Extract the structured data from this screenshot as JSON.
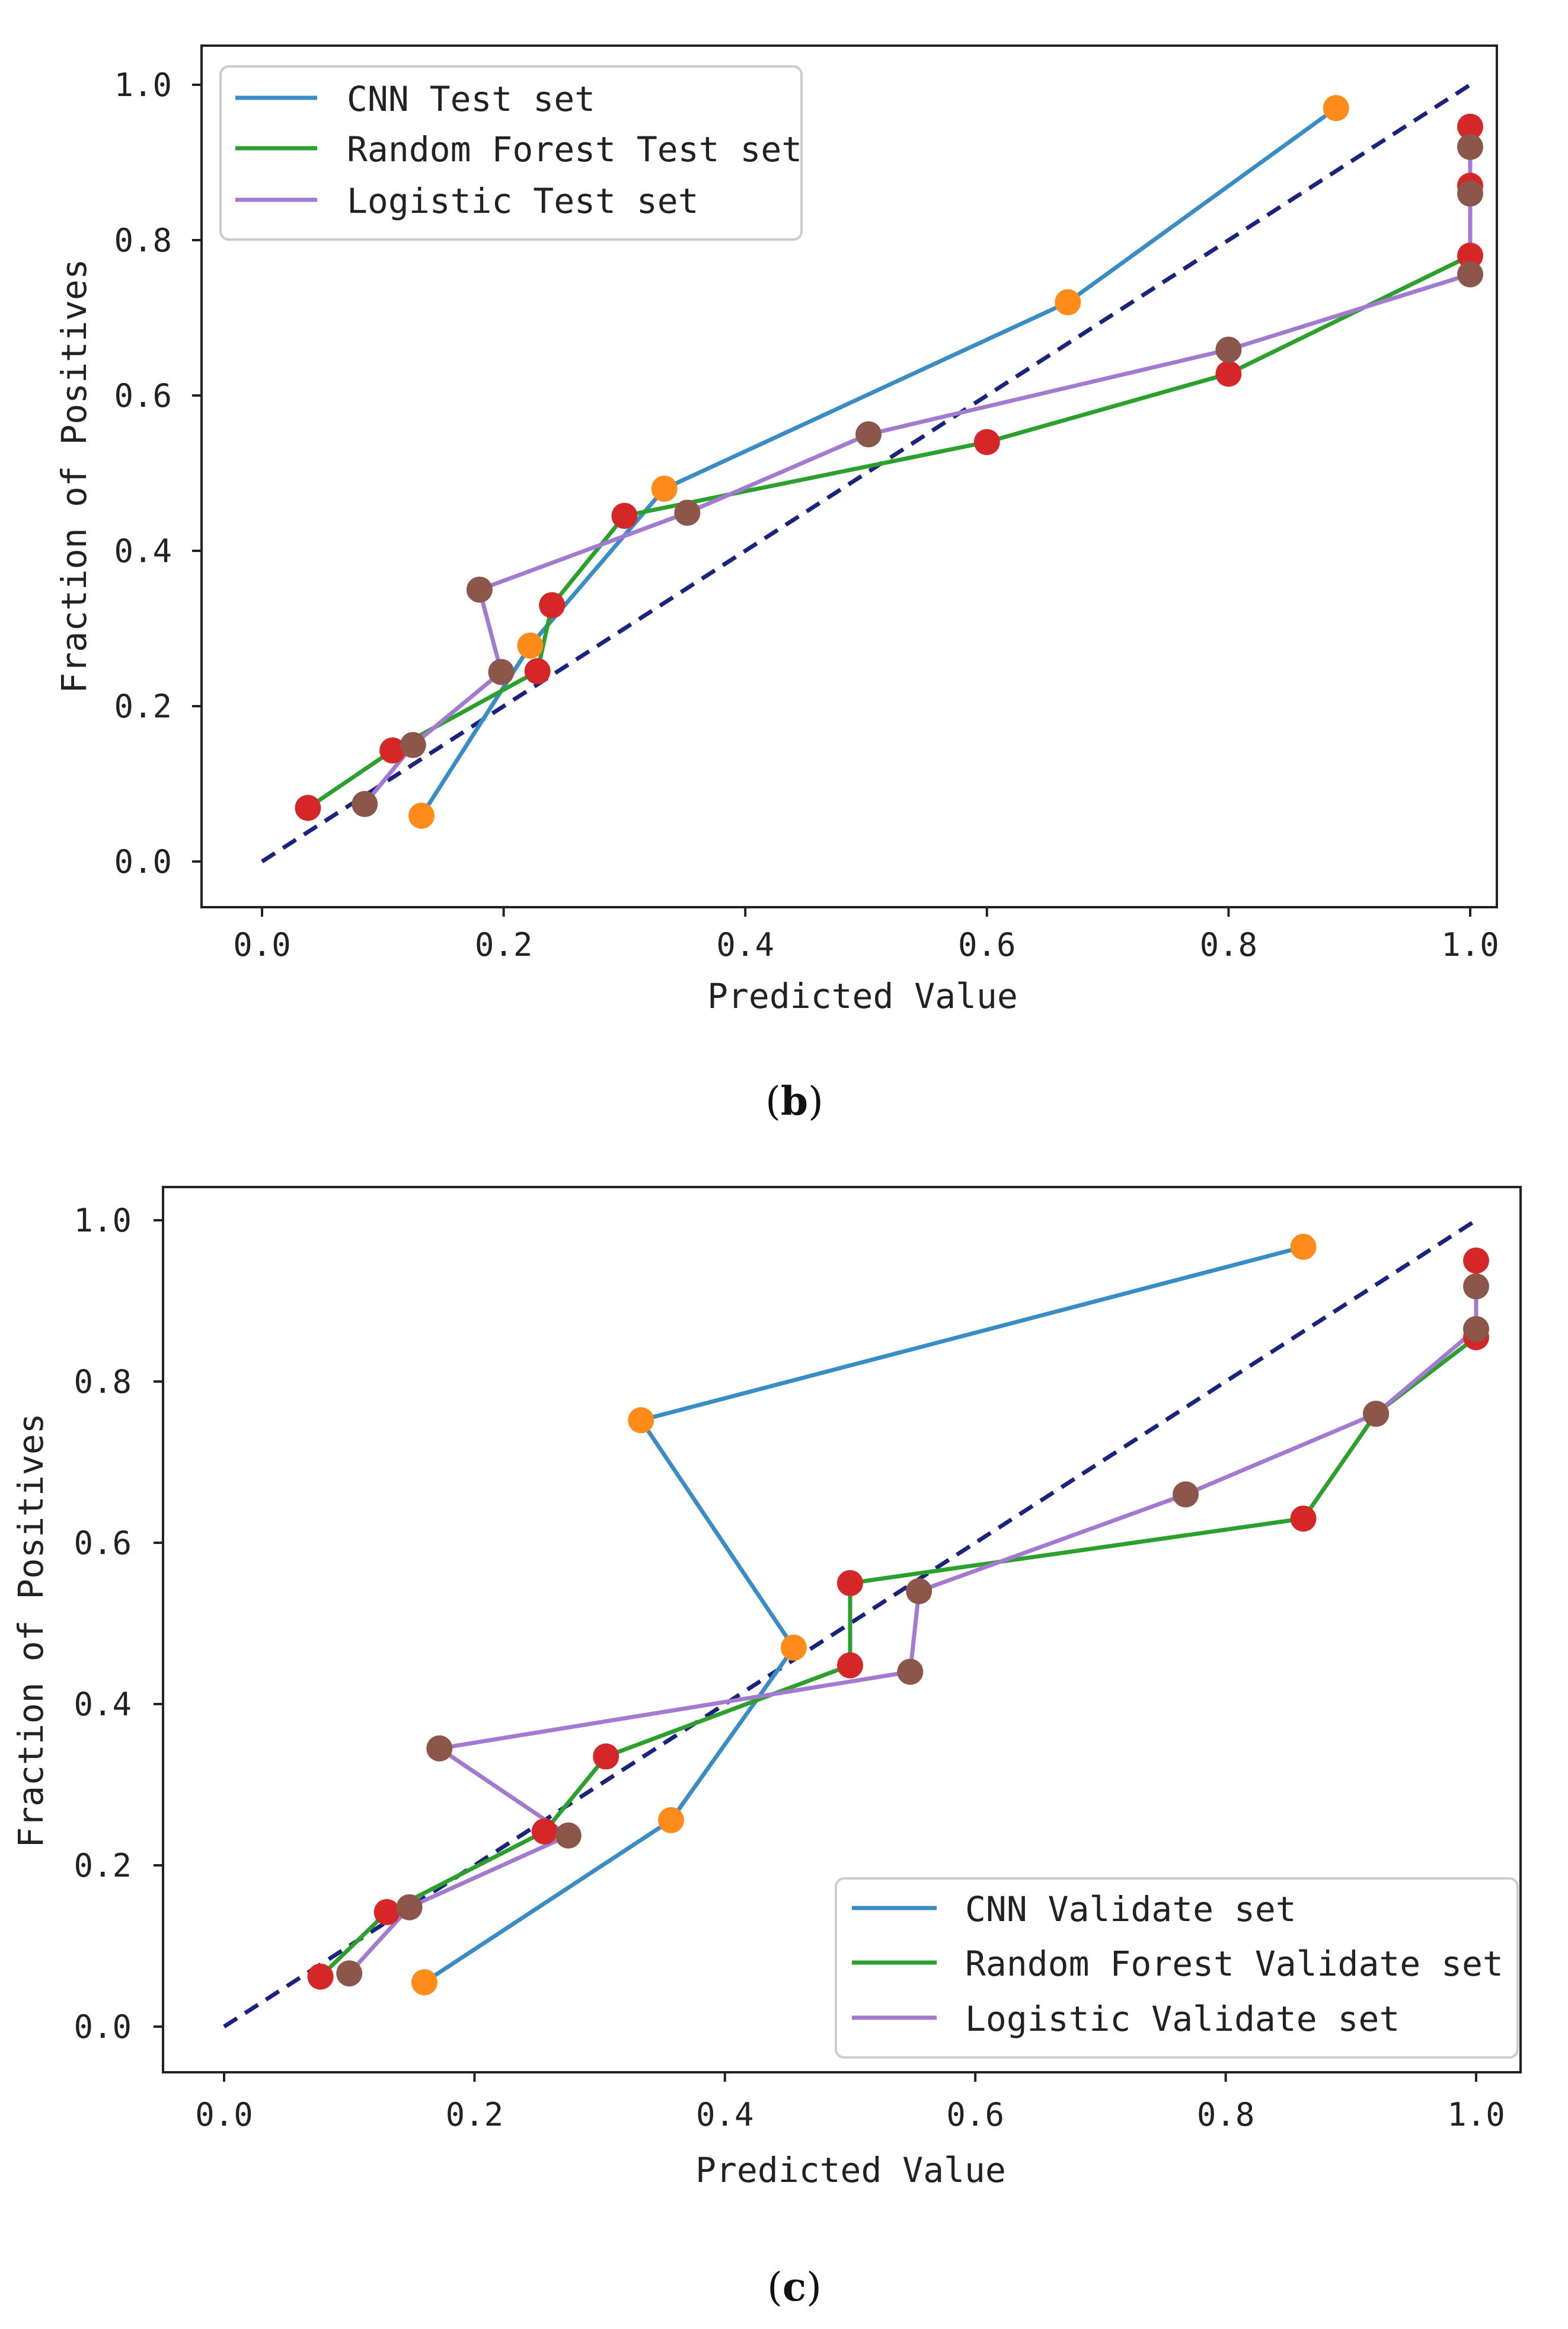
{
  "figure": {
    "panel_b_label": "b",
    "panel_c_label": "c"
  },
  "colors": {
    "cnn": "#3a8dc4",
    "rf": "#2ca02c",
    "logistic": "#a27bd1",
    "cnn_marker": "#ff8c1a",
    "rf_marker": "#d62728",
    "logistic_marker": "#8c564b",
    "diagonal": "#1a237e",
    "axis": "#222222",
    "legend_border": "#cccccc"
  },
  "chart_data": [
    {
      "type": "line",
      "panel": "b",
      "title": "",
      "xlabel": "Predicted Value",
      "ylabel": "Fraction of Positives",
      "xlim": [
        -0.05,
        1.05
      ],
      "ylim": [
        -0.05,
        1.05
      ],
      "xticks": [
        0.0,
        0.2,
        0.4,
        0.6,
        0.8,
        1.0
      ],
      "yticks": [
        0.0,
        0.2,
        0.4,
        0.6,
        0.8,
        1.0
      ],
      "xtick_labels": [
        "0.0",
        "0.2",
        "0.4",
        "0.6",
        "0.8",
        "1.0"
      ],
      "ytick_labels": [
        "0.0",
        "0.2",
        "0.4",
        "0.6",
        "0.8",
        "1.0"
      ],
      "legend_position": "top-left",
      "diagonal": {
        "x": [
          0,
          1
        ],
        "y": [
          0,
          1
        ],
        "style": "dashed"
      },
      "series": [
        {
          "name": "CNN Test set",
          "key": "cnn",
          "x": [
            0.132,
            0.222,
            0.333,
            0.667,
            0.889
          ],
          "y": [
            0.059,
            0.278,
            0.48,
            0.72,
            0.97
          ]
        },
        {
          "name": "Random Forest Test set",
          "key": "rf",
          "x": [
            0.038,
            0.108,
            0.228,
            0.24,
            0.3,
            0.6,
            0.8,
            1.0,
            1.0,
            1.0
          ],
          "y": [
            0.069,
            0.143,
            0.245,
            0.33,
            0.445,
            0.54,
            0.628,
            0.78,
            0.87,
            0.946
          ]
        },
        {
          "name": "Logistic Test set",
          "key": "logistic",
          "x": [
            0.085,
            0.125,
            0.198,
            0.18,
            0.352,
            0.502,
            0.8,
            1.0,
            1.0,
            1.0
          ],
          "y": [
            0.074,
            0.15,
            0.244,
            0.35,
            0.449,
            0.55,
            0.659,
            0.756,
            0.86,
            0.92
          ]
        }
      ]
    },
    {
      "type": "line",
      "panel": "c",
      "title": "",
      "xlabel": "Predicted Value",
      "ylabel": "Fraction of Positives",
      "xlim": [
        -0.05,
        1.05
      ],
      "ylim": [
        -0.05,
        1.05
      ],
      "xticks": [
        0.0,
        0.2,
        0.4,
        0.6,
        0.8,
        1.0
      ],
      "yticks": [
        0.0,
        0.2,
        0.4,
        0.6,
        0.8,
        1.0
      ],
      "xtick_labels": [
        "0.0",
        "0.2",
        "0.4",
        "0.6",
        "0.8",
        "1.0"
      ],
      "ytick_labels": [
        "0.0",
        "0.2",
        "0.4",
        "0.6",
        "0.8",
        "1.0"
      ],
      "legend_position": "lower-right",
      "diagonal": {
        "x": [
          0,
          1
        ],
        "y": [
          0,
          1
        ],
        "style": "dashed"
      },
      "series": [
        {
          "name": "CNN Validate set",
          "key": "cnn",
          "x": [
            0.16,
            0.357,
            0.455,
            0.333,
            0.862
          ],
          "y": [
            0.055,
            0.256,
            0.47,
            0.752,
            0.967
          ]
        },
        {
          "name": "Random Forest Validate set",
          "key": "rf",
          "x": [
            0.077,
            0.13,
            0.256,
            0.305,
            0.5,
            0.5,
            0.862,
            0.92,
            1.0,
            1.0
          ],
          "y": [
            0.062,
            0.142,
            0.242,
            0.335,
            0.448,
            0.55,
            0.63,
            0.76,
            0.855,
            0.95
          ]
        },
        {
          "name": "Logistic Validate set",
          "key": "logistic",
          "x": [
            0.1,
            0.148,
            0.275,
            0.172,
            0.548,
            0.555,
            0.768,
            0.92,
            1.0,
            1.0
          ],
          "y": [
            0.066,
            0.148,
            0.237,
            0.345,
            0.44,
            0.54,
            0.66,
            0.76,
            0.865,
            0.918
          ]
        }
      ]
    }
  ]
}
